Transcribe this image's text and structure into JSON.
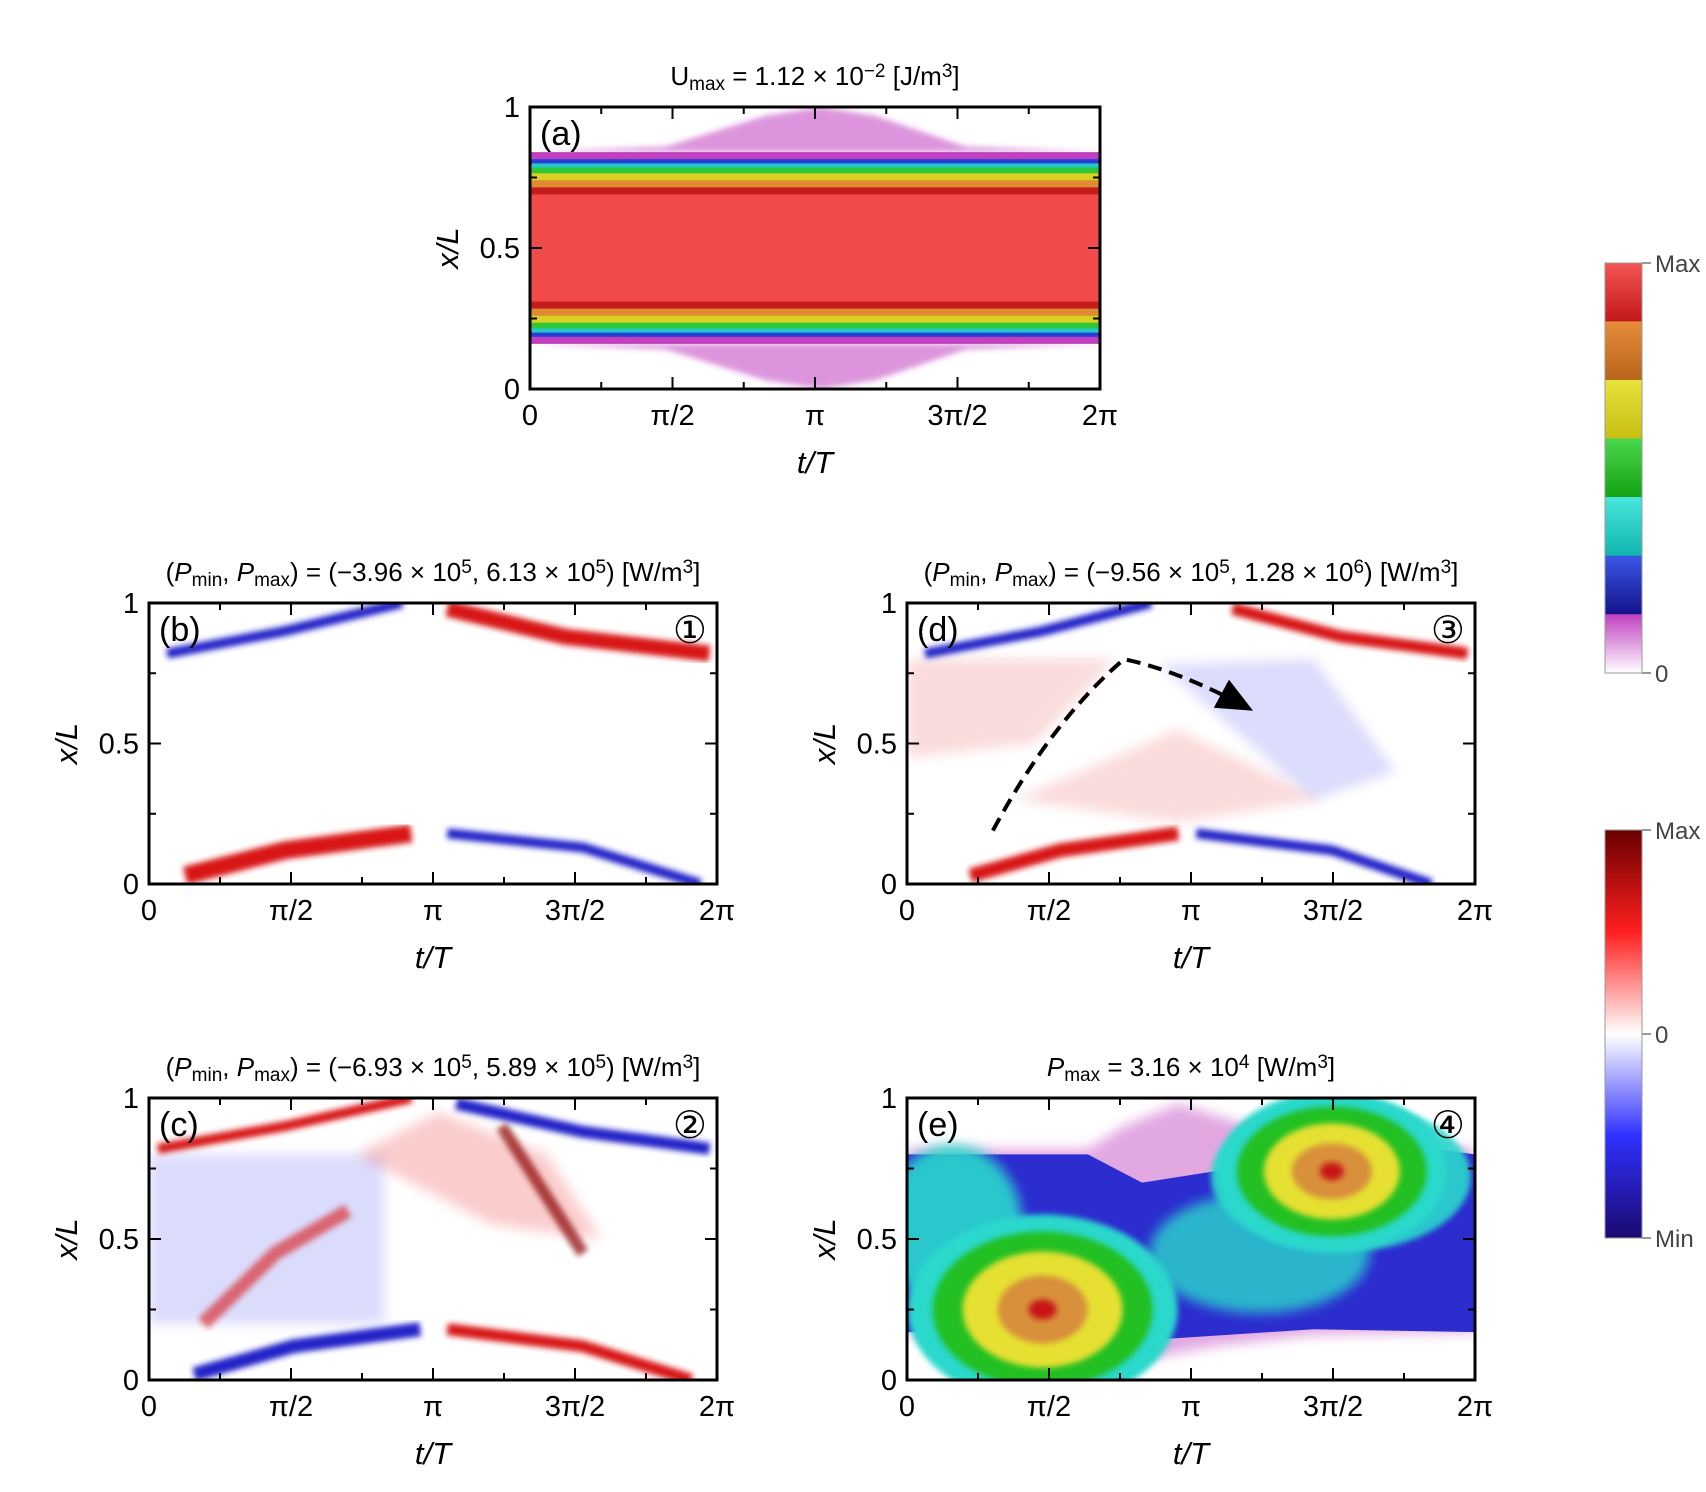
{
  "chart_data": [
    {
      "id": "a",
      "type": "heatmap",
      "panel_label": "(a)",
      "corner_label": "",
      "colorscale": "sequential",
      "title_parts": [
        {
          "t": "U",
          "s": "n"
        },
        {
          "t": "max",
          "s": "sub"
        },
        {
          "t": " = 1.12 × 10",
          "s": "n"
        },
        {
          "t": "−2",
          "s": "sup"
        },
        {
          "t": " [J/m",
          "s": "n"
        },
        {
          "t": "3",
          "s": "sup"
        },
        {
          "t": "]",
          "s": "n"
        }
      ],
      "xlabel": "t/T",
      "ylabel": "x/L",
      "xlim": [
        0,
        6.2832
      ],
      "ylim": [
        0,
        1
      ],
      "xticks": [
        0,
        1.5708,
        3.1416,
        4.7124,
        6.2832
      ],
      "xticklabels": [
        "0",
        "π/2",
        "π",
        "3π/2",
        "2π"
      ],
      "yticks": [
        0,
        0.5,
        1
      ],
      "yticklabels": [
        "0",
        "0.5",
        "1"
      ],
      "description": "Energy density band: max (red) centered between x/L≈0.3 and 0.7, graded to near-zero outside x/L≈0.2–0.8"
    },
    {
      "id": "b",
      "type": "heatmap",
      "panel_label": "(b)",
      "corner_label": "①",
      "colorscale": "diverging",
      "title_parts": [
        {
          "t": "(",
          "s": "n"
        },
        {
          "t": "P",
          "s": "i"
        },
        {
          "t": "min",
          "s": "sub"
        },
        {
          "t": ", ",
          "s": "n"
        },
        {
          "t": "P",
          "s": "i"
        },
        {
          "t": "max",
          "s": "sub"
        },
        {
          "t": ") = (−3.96 × 10",
          "s": "n"
        },
        {
          "t": "5",
          "s": "sup"
        },
        {
          "t": ", 6.13 × 10",
          "s": "n"
        },
        {
          "t": "5",
          "s": "sup"
        },
        {
          "t": ") [W/m",
          "s": "n"
        },
        {
          "t": "3",
          "s": "sup"
        },
        {
          "t": "]",
          "s": "n"
        }
      ],
      "xlabel": "t/T",
      "ylabel": "x/L",
      "xlim": [
        0,
        6.2832
      ],
      "ylim": [
        0,
        1
      ],
      "xticks": [
        0,
        1.5708,
        3.1416,
        4.7124,
        6.2832
      ],
      "xticklabels": [
        "0",
        "π/2",
        "π",
        "3π/2",
        "2π"
      ],
      "yticks": [
        0,
        0.5,
        1
      ],
      "yticklabels": [
        "0",
        "0.5",
        "1"
      ]
    },
    {
      "id": "c",
      "type": "heatmap",
      "panel_label": "(c)",
      "corner_label": "②",
      "colorscale": "diverging",
      "title_parts": [
        {
          "t": "(",
          "s": "n"
        },
        {
          "t": "P",
          "s": "i"
        },
        {
          "t": "min",
          "s": "sub"
        },
        {
          "t": ", ",
          "s": "n"
        },
        {
          "t": "P",
          "s": "i"
        },
        {
          "t": "max",
          "s": "sub"
        },
        {
          "t": ") = (−6.93 × 10",
          "s": "n"
        },
        {
          "t": "5",
          "s": "sup"
        },
        {
          "t": ", 5.89 × 10",
          "s": "n"
        },
        {
          "t": "5",
          "s": "sup"
        },
        {
          "t": ") [W/m",
          "s": "n"
        },
        {
          "t": "3",
          "s": "sup"
        },
        {
          "t": "]",
          "s": "n"
        }
      ],
      "xlabel": "t/T",
      "ylabel": "x/L",
      "xlim": [
        0,
        6.2832
      ],
      "ylim": [
        0,
        1
      ],
      "xticks": [
        0,
        1.5708,
        3.1416,
        4.7124,
        6.2832
      ],
      "xticklabels": [
        "0",
        "π/2",
        "π",
        "3π/2",
        "2π"
      ],
      "yticks": [
        0,
        0.5,
        1
      ],
      "yticklabels": [
        "0",
        "0.5",
        "1"
      ]
    },
    {
      "id": "d",
      "type": "heatmap",
      "panel_label": "(d)",
      "corner_label": "③",
      "colorscale": "diverging",
      "title_parts": [
        {
          "t": "(",
          "s": "n"
        },
        {
          "t": "P",
          "s": "i"
        },
        {
          "t": "min",
          "s": "sub"
        },
        {
          "t": ", ",
          "s": "n"
        },
        {
          "t": "P",
          "s": "i"
        },
        {
          "t": "max",
          "s": "sub"
        },
        {
          "t": ") = (−9.56 × 10",
          "s": "n"
        },
        {
          "t": "5",
          "s": "sup"
        },
        {
          "t": ", 1.28 × 10",
          "s": "n"
        },
        {
          "t": "6",
          "s": "sup"
        },
        {
          "t": ") [W/m",
          "s": "n"
        },
        {
          "t": "3",
          "s": "sup"
        },
        {
          "t": "]",
          "s": "n"
        }
      ],
      "xlabel": "t/T",
      "ylabel": "x/L",
      "xlim": [
        0,
        6.2832
      ],
      "ylim": [
        0,
        1
      ],
      "xticks": [
        0,
        1.5708,
        3.1416,
        4.7124,
        6.2832
      ],
      "xticklabels": [
        "0",
        "π/2",
        "π",
        "3π/2",
        "2π"
      ],
      "yticks": [
        0,
        0.5,
        1
      ],
      "yticklabels": [
        "0",
        "0.5",
        "1"
      ],
      "annotation_arrow": {
        "style": "dashed",
        "path_points": [
          [
            0.95,
            0.19
          ],
          [
            1.6,
            0.58
          ],
          [
            2.4,
            0.8
          ],
          [
            3.0,
            0.76
          ],
          [
            3.75,
            0.63
          ]
        ]
      }
    },
    {
      "id": "e",
      "type": "heatmap",
      "panel_label": "(e)",
      "corner_label": "④",
      "colorscale": "sequential",
      "title_parts": [
        {
          "t": "P",
          "s": "i"
        },
        {
          "t": "max",
          "s": "sub"
        },
        {
          "t": " = 3.16 × 10",
          "s": "n"
        },
        {
          "t": "4",
          "s": "sup"
        },
        {
          "t": " [W/m",
          "s": "n"
        },
        {
          "t": "3",
          "s": "sup"
        },
        {
          "t": "]",
          "s": "n"
        }
      ],
      "xlabel": "t/T",
      "ylabel": "x/L",
      "xlim": [
        0,
        6.2832
      ],
      "ylim": [
        0,
        1
      ],
      "xticks": [
        0,
        1.5708,
        3.1416,
        4.7124,
        6.2832
      ],
      "xticklabels": [
        "0",
        "π/2",
        "π",
        "3π/2",
        "2π"
      ],
      "yticks": [
        0,
        0.5,
        1
      ],
      "yticklabels": [
        "0",
        "0.5",
        "1"
      ],
      "hotspots": [
        {
          "t": 1.5,
          "x": 0.25,
          "level": "Max"
        },
        {
          "t": 4.7,
          "x": 0.74,
          "level": "Max"
        }
      ]
    }
  ],
  "colorbars": [
    {
      "id": "sequential",
      "labels": [
        "Max",
        "0"
      ],
      "colors": [
        "#f35555",
        "#c21818",
        "#e58e3a",
        "#b8641a",
        "#e8e23e",
        "#c8bf12",
        "#4bd64b",
        "#13a313",
        "#48e6dc",
        "#12b5b0",
        "#3a56e6",
        "#14148c",
        "#c040c0",
        "#ffffff"
      ]
    },
    {
      "id": "diverging",
      "labels": [
        "Max",
        "0",
        "Min"
      ],
      "colors": [
        "#6a0000",
        "#ff1f1f",
        "#ffffff",
        "#3030ff",
        "#1a0a70"
      ]
    }
  ],
  "ui_colors": {
    "red": "#d81818",
    "blue": "#2424c8",
    "dark_red": "#8b0000",
    "dark_blue": "#10106a",
    "magenta": "#c040c0"
  }
}
